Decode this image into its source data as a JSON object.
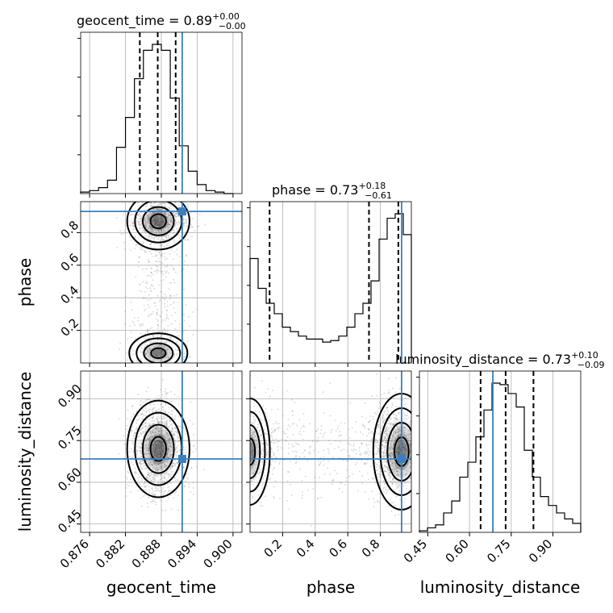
{
  "chart_data": {
    "type": "corner",
    "parameters": [
      "geocent_time",
      "phase",
      "luminosity_distance"
    ],
    "ranges": {
      "geocent_time": [
        0.8745,
        0.9015
      ],
      "phase": [
        0.0,
        0.99
      ],
      "luminosity_distance": [
        0.42,
        1.0
      ]
    },
    "truths": {
      "geocent_time": 0.8915,
      "phase": 0.93,
      "luminosity_distance": 0.684
    },
    "titles": [
      {
        "param": "geocent_time",
        "prefix": "geocent_time = 0.89",
        "plus": "+0.00",
        "minus": "−0.00"
      },
      {
        "param": "phase",
        "prefix": "phase = 0.73",
        "plus": "+0.18",
        "minus": "−0.61"
      },
      {
        "param": "luminosity_distance",
        "prefix": "luminosity_distance = 0.73",
        "plus": "+0.10",
        "minus": "−0.09"
      }
    ],
    "axis_labels": {
      "x": [
        "geocent_time",
        "phase",
        "luminosity_distance"
      ],
      "y": [
        "phase",
        "luminosity_distance"
      ]
    },
    "ticks": {
      "geocent_time": {
        "values": [
          0.876,
          0.882,
          0.888,
          0.894,
          0.9
        ],
        "labels": [
          "0.876",
          "0.882",
          "0.888",
          "0.894",
          "0.900"
        ]
      },
      "phase_x": {
        "values": [
          0.2,
          0.4,
          0.6,
          0.8
        ],
        "labels": [
          "0.2",
          "0.4",
          "0.6",
          "0.8"
        ]
      },
      "phase_y": {
        "values": [
          0.2,
          0.4,
          0.6,
          0.8
        ],
        "labels": [
          "0.2",
          "0.4",
          "0.6",
          "0.8"
        ]
      },
      "luminosity_distance": {
        "values": [
          0.45,
          0.6,
          0.75,
          0.9
        ],
        "labels": [
          "0.45",
          "0.60",
          "0.75",
          "0.90"
        ]
      }
    },
    "histograms": {
      "geocent_time": {
        "edges": [
          0.8745,
          0.876,
          0.8775,
          0.879,
          0.8805,
          0.882,
          0.8835,
          0.885,
          0.8865,
          0.888,
          0.8895,
          0.891,
          0.8925,
          0.894,
          0.8955,
          0.897,
          0.8985,
          0.9
        ],
        "counts": [
          0.01,
          0.02,
          0.04,
          0.09,
          0.31,
          0.51,
          0.77,
          0.96,
          1.0,
          0.96,
          0.64,
          0.32,
          0.15,
          0.06,
          0.02,
          0.01,
          0.0
        ],
        "quantiles": [
          0.8844,
          0.8874,
          0.8904
        ]
      },
      "phase": {
        "edges": [
          0.0,
          0.0495,
          0.099,
          0.1485,
          0.198,
          0.2475,
          0.297,
          0.3465,
          0.396,
          0.4455,
          0.495,
          0.5445,
          0.594,
          0.6435,
          0.693,
          0.7425,
          0.792,
          0.8415,
          0.891,
          0.9405,
          0.99
        ],
        "counts": [
          0.7,
          0.5,
          0.4,
          0.33,
          0.24,
          0.21,
          0.18,
          0.16,
          0.16,
          0.14,
          0.15,
          0.18,
          0.24,
          0.33,
          0.4,
          0.55,
          0.83,
          0.97,
          1.0,
          0.86
        ],
        "quantiles": [
          0.12,
          0.73,
          0.91
        ]
      },
      "luminosity_distance": {
        "edges": [
          0.42,
          0.449,
          0.478,
          0.507,
          0.536,
          0.565,
          0.594,
          0.623,
          0.652,
          0.681,
          0.71,
          0.739,
          0.768,
          0.797,
          0.826,
          0.855,
          0.884,
          0.913,
          0.942,
          0.971,
          1.0
        ],
        "counts": [
          0.01,
          0.03,
          0.05,
          0.13,
          0.21,
          0.37,
          0.47,
          0.64,
          0.82,
          1.0,
          0.99,
          0.93,
          0.84,
          0.55,
          0.37,
          0.24,
          0.18,
          0.13,
          0.09,
          0.06
        ],
        "quantiles": [
          0.64,
          0.73,
          0.83
        ]
      }
    },
    "contour_sigma_levels": [
      0.5,
      1.0,
      1.5,
      2.0
    ],
    "grid": true
  }
}
